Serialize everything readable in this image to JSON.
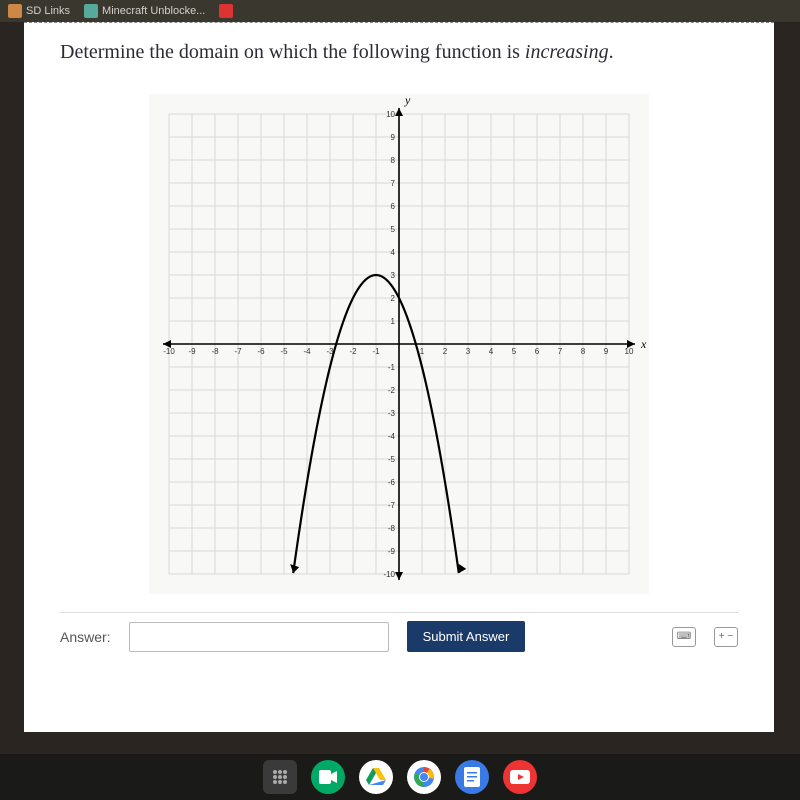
{
  "bookmarks": {
    "items": [
      {
        "label": "SD Links",
        "icon_color": "#c84"
      },
      {
        "label": "Minecraft Unblocke...",
        "icon_color": "#5a9"
      }
    ]
  },
  "question": {
    "prefix": "Determine the domain on which the following function is ",
    "emphasis": "increasing",
    "suffix": "."
  },
  "chart": {
    "type": "line",
    "xlim": [
      -10,
      10
    ],
    "ylim": [
      -10,
      10
    ],
    "xtick_step": 1,
    "ytick_step": 1,
    "x_axis_label": "x",
    "y_axis_label": "y",
    "grid_color": "#d9d9d4",
    "axis_color": "#000000",
    "background_color": "#f8f8f6",
    "tick_font_size": 8,
    "axis_label_font_size": 12,
    "curve": {
      "type": "parabola_down",
      "vertex": [
        -1,
        3
      ],
      "a": -1,
      "stroke_color": "#000000",
      "stroke_width": 2.2,
      "x_range_drawn": [
        -4.6,
        2.6
      ],
      "arrows_at_ends": true
    },
    "axis_arrows": true
  },
  "answer": {
    "label": "Answer:",
    "placeholder": "",
    "value": ""
  },
  "submit": {
    "label": "Submit Answer"
  },
  "toolbar_icons": {
    "keyboard": "⌨",
    "plusminus": "+ −"
  },
  "taskbar": {
    "icons": [
      "launcher",
      "meet",
      "drive",
      "chrome",
      "docs",
      "youtube"
    ]
  }
}
